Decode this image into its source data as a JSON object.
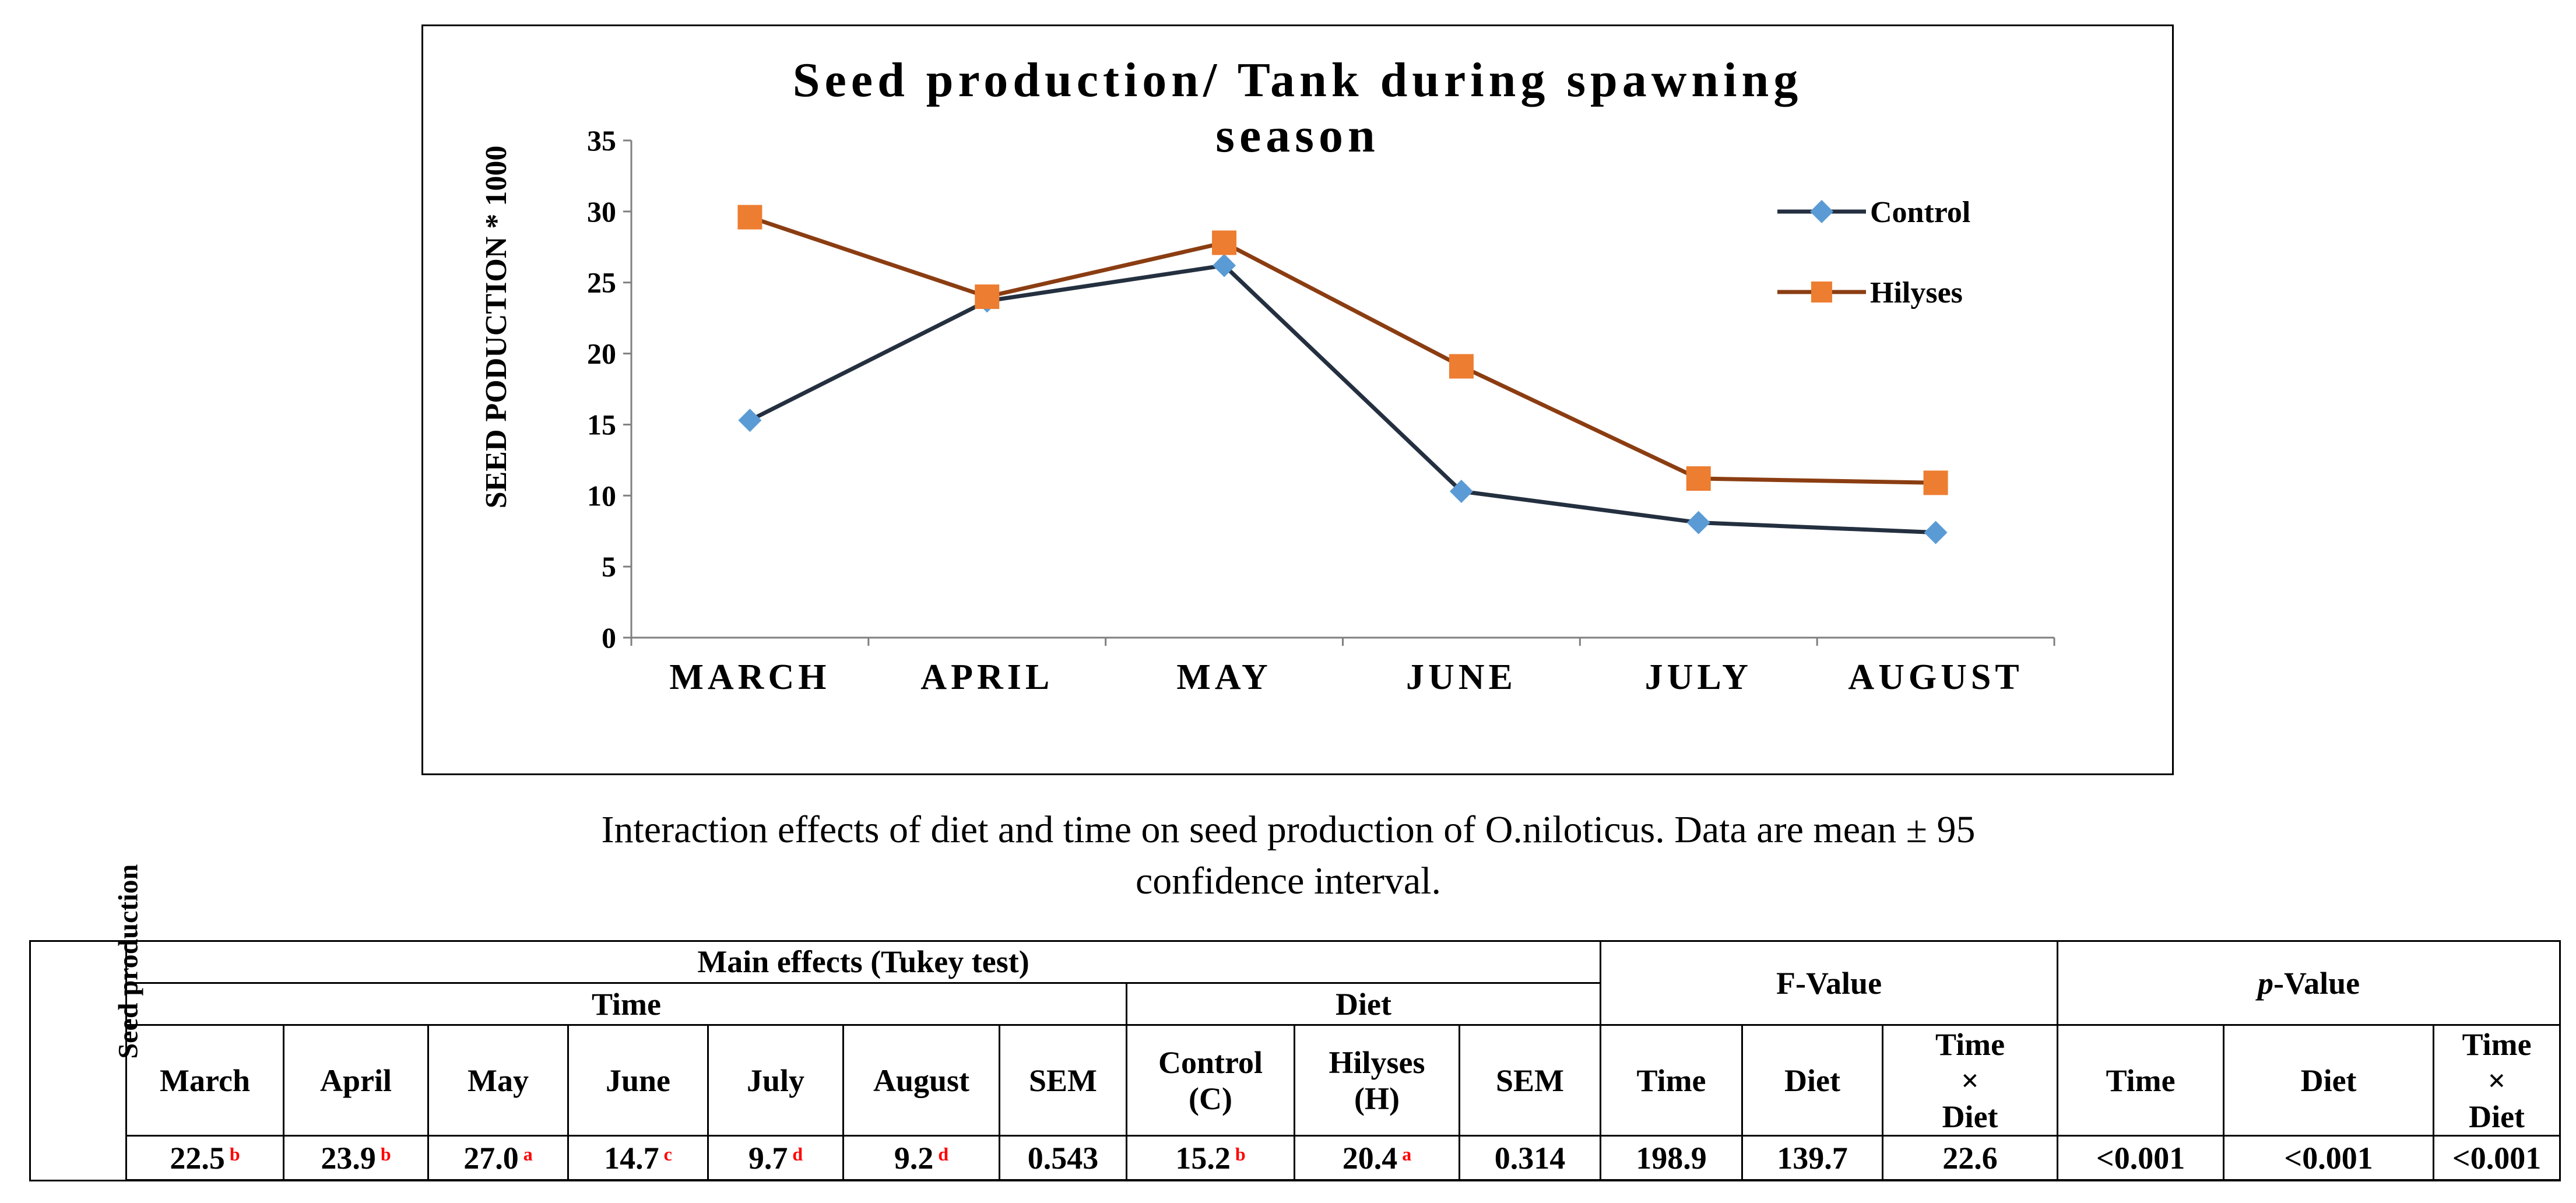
{
  "chart_data": {
    "type": "line",
    "title_line1": "Seed production/ Tank during spawning",
    "title_line2": "season",
    "ylabel": "SEED PODUCTION * 1000",
    "xlabel": "",
    "categories": [
      "MARCH",
      "APRIL",
      "MAY",
      "JUNE",
      "JULY",
      "AUGUST"
    ],
    "ylim": [
      0,
      35
    ],
    "yticks": [
      "0",
      "5",
      "10",
      "15",
      "20",
      "25",
      "30",
      "35"
    ],
    "grid": false,
    "legend_position": "top-right",
    "series": [
      {
        "name": "Control",
        "values": [
          15.3,
          23.7,
          26.2,
          10.3,
          8.1,
          7.4
        ],
        "color": "#243040",
        "marker": "diamond",
        "marker_color": "#5b9bd5"
      },
      {
        "name": "Hilyses",
        "values": [
          29.6,
          24.0,
          27.8,
          19.1,
          11.2,
          10.9
        ],
        "color": "#8b3d12",
        "marker": "square",
        "marker_color": "#ed7d31"
      }
    ]
  },
  "caption": {
    "line1": "Interaction effects of diet and time on seed production of O.niloticus. Data are mean ± 95",
    "line2": "confidence interval."
  },
  "table": {
    "row_label": "Seed production",
    "main_effects_header": "Main effects (Tukey test)",
    "time_header": "Time",
    "diet_header": "Diet",
    "f_value_header": "F-Value",
    "p_value_p": "p",
    "p_value_rest": "-Value",
    "time_cols": [
      "March",
      "April",
      "May",
      "June",
      "July",
      "August",
      "SEM"
    ],
    "diet_cols": {
      "control_1": "Control",
      "control_2": "(C)",
      "hilyses_1": "Hilyses",
      "hilyses_2": "(H)",
      "sem": "SEM"
    },
    "f_cols": {
      "time": "Time",
      "diet": "Diet",
      "inter_1": "Time",
      "inter_2": "×",
      "inter_3": "Diet"
    },
    "p_cols": {
      "time": "Time",
      "diet": "Diet",
      "inter_1": "Time",
      "inter_2": "×",
      "inter_3": "Diet"
    },
    "time_values": [
      {
        "value": "22.5",
        "letter": "b"
      },
      {
        "value": "23.9",
        "letter": "b"
      },
      {
        "value": "27.0",
        "letter": "a"
      },
      {
        "value": "14.7",
        "letter": "c"
      },
      {
        "value": "9.7",
        "letter": "d"
      },
      {
        "value": "9.2",
        "letter": "d"
      }
    ],
    "time_sem": "0.543",
    "diet_values": [
      {
        "value": "15.2",
        "letter": "b"
      },
      {
        "value": "20.4",
        "letter": "a"
      }
    ],
    "diet_sem": "0.314",
    "f_values": [
      "198.9",
      "139.7",
      "22.6"
    ],
    "p_values": [
      "<0.001",
      "<0.001",
      "<0.001"
    ]
  }
}
